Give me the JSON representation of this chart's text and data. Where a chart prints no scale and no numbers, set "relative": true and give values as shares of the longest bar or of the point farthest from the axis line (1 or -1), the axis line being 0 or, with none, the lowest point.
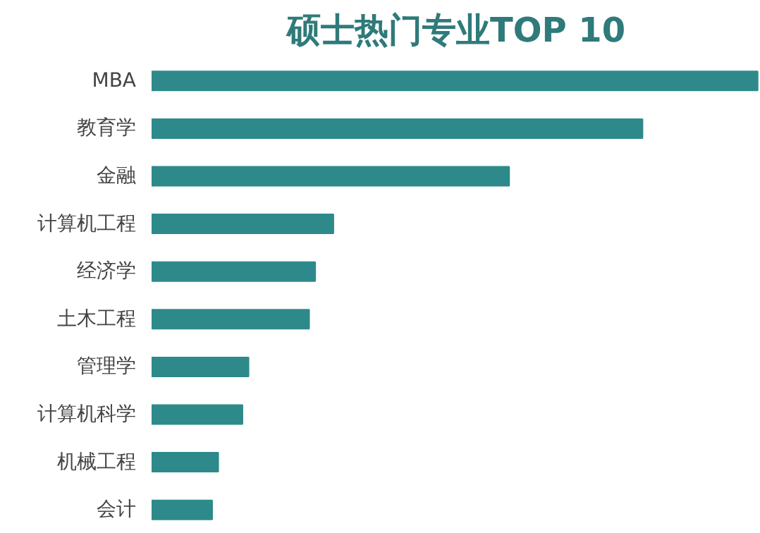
{
  "chart_data": {
    "type": "bar",
    "orientation": "horizontal",
    "relative": true,
    "title": "硕士热门专业TOP 10",
    "categories": [
      "MBA",
      "教育学",
      "金融",
      "计算机工程",
      "经济学",
      "土木工程",
      "管理学",
      "计算机科学",
      "机械工程",
      "会计"
    ],
    "values": [
      1,
      0.81,
      0.59,
      0.3,
      0.27,
      0.26,
      0.16,
      0.15,
      0.11,
      0.1
    ],
    "color": "#2e8a8a",
    "grid": false
  }
}
